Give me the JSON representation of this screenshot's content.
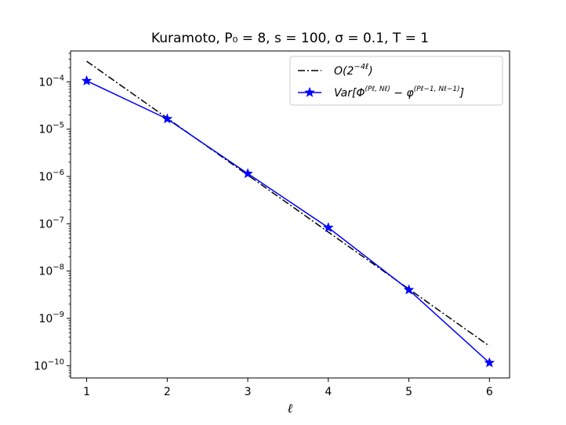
{
  "chart_data": {
    "type": "line",
    "title": "Kuramoto, P₀ = 8, s = 100, σ = 0.1, T = 1",
    "xlabel": "ℓ",
    "ylabel": "",
    "x": [
      1,
      2,
      3,
      4,
      5,
      6
    ],
    "xticks": [
      "1",
      "2",
      "3",
      "4",
      "5",
      "6"
    ],
    "xlim": [
      0.8,
      6.25
    ],
    "yscale": "log",
    "ylim": [
      5.5e-11,
      0.00045
    ],
    "yticks": [
      {
        "value": 0.0001,
        "base": "10",
        "exp": "−4"
      },
      {
        "value": 1e-05,
        "base": "10",
        "exp": "−5"
      },
      {
        "value": 1e-06,
        "base": "10",
        "exp": "−6"
      },
      {
        "value": 1e-07,
        "base": "10",
        "exp": "−7"
      },
      {
        "value": 1e-08,
        "base": "10",
        "exp": "−8"
      },
      {
        "value": 1e-09,
        "base": "10",
        "exp": "−9"
      },
      {
        "value": 1e-10,
        "base": "10",
        "exp": "−10"
      }
    ],
    "grid": false,
    "legend_position": "top-right",
    "series": [
      {
        "name": "O(2^{-4ℓ})",
        "legend_text": "O(2",
        "legend_sup": "−4ℓ",
        "legend_tail": ")",
        "style": "dashdot",
        "color": "#000000",
        "marker": "none",
        "values": [
          0.000273,
          1.71e-05,
          1.07e-06,
          6.67e-08,
          4.17e-09,
          2.6e-10
        ]
      },
      {
        "name": "Var[Φ^{(P_ℓ,N_ℓ)} − φ^{(P_{ℓ−1},N_{ℓ−1})}]",
        "legend_text": "Var[Φ",
        "legend_sup1": "(Pℓ, Nℓ)",
        "legend_mid": " − φ",
        "legend_sup2": "(Pℓ−1, Nℓ−1)",
        "legend_tail": "]",
        "style": "solid",
        "color": "#0000ff",
        "marker": "star",
        "values": [
          0.000105,
          1.65e-05,
          1.15e-06,
          8.3e-08,
          4e-09,
          1.15e-10
        ]
      }
    ]
  }
}
